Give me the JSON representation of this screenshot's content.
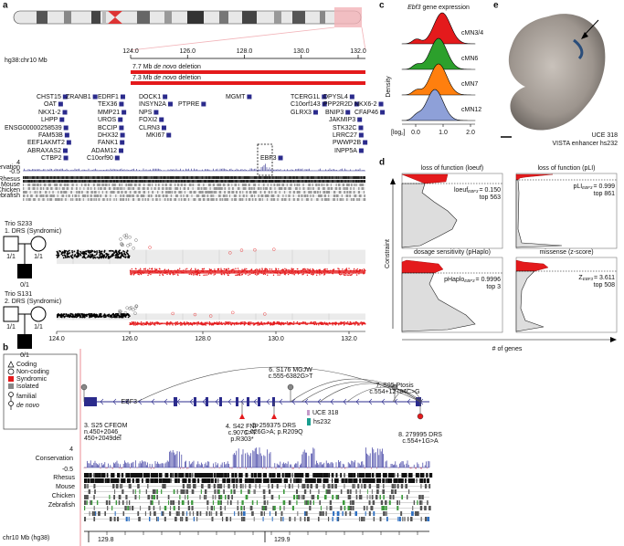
{
  "panel_labels": [
    "a",
    "b",
    "c",
    "d",
    "e"
  ],
  "panel_a": {
    "axis_label": "hg38:chr10 Mb",
    "axis_ticks": [
      "124.0",
      "126.0",
      "128.0",
      "130.0",
      "132.0"
    ],
    "deletions": [
      {
        "size": "7.7 Mb",
        "kind": "de novo",
        "rest": "deletion"
      },
      {
        "size": "7.3 Mb",
        "kind": "de novo",
        "rest": "deletion"
      }
    ],
    "genes": [
      "CHST15",
      "ZRANB1",
      "EDRF1",
      "DOCK1",
      "MGMT",
      "TCERG1L",
      "DPYSL4",
      "OAT",
      "TEX36",
      "INSYN2A",
      "PTPRE",
      "C10orf143",
      "PPP2R2D",
      "NKX6-2",
      "NKX1-2",
      "MMP21",
      "NPS",
      "GLRX3",
      "BNIP3",
      "CFAP46",
      "LHPP",
      "UROS",
      "FOXI2",
      "JAKMIP3",
      "ENSG00000258539",
      "BCCIP",
      "CLRN3",
      "STK32C",
      "FAM53B",
      "DHX32",
      "MKI67",
      "LRRC27",
      "EEF1AKMT2",
      "FANK1",
      "PWWP2B",
      "ABRAXAS2",
      "ADAM12",
      "INPP5A",
      "CTBP2",
      "C10orf90",
      "EBF3"
    ],
    "conservation": {
      "max": "4",
      "label": "Conservation",
      "min": "-0.5"
    },
    "species": [
      "Rhesus",
      "Mouse",
      "Chicken",
      "Zebrafish"
    ],
    "trios": [
      {
        "name": "Trio S233",
        "diagnosis": "1. DRS (Syndromic)",
        "parents": [
          "1/1",
          "1/1"
        ],
        "child": "0/1"
      },
      {
        "name": "Trio S131",
        "diagnosis": "2. DRS (Syndromic)",
        "parents": [
          "1/1",
          "1/1"
        ],
        "child": "0/1"
      }
    ],
    "plot_ticks": [
      "124.0",
      "126.0",
      "128.0",
      "130.0",
      "132.0"
    ]
  },
  "panel_b": {
    "legend": [
      "Coding",
      "Non-coding",
      "Syndromic",
      "Isolated",
      "familial",
      "de novo"
    ],
    "gene": "EBF3",
    "variants": [
      [
        "3. S25 CFEOM",
        "n.450+2046_",
        "450+2049del"
      ],
      [
        "4. S42 FNP",
        "c.907C>T",
        "p.R303*"
      ],
      [
        "5. 259375 DRS",
        "c.626G>A; p.R209Q"
      ],
      [
        "6. S176 MGJW",
        "c.555-6382G>T"
      ],
      [
        "7. S95 Ptosis",
        "c.554+12794C>G"
      ],
      [
        "8. 279995 DRS",
        "c.554+1G>A"
      ]
    ],
    "elements": [
      "UCE 318",
      "hs232"
    ],
    "conservation": {
      "max": "4",
      "label": "Conservation",
      "min": "-0.5"
    },
    "species": [
      "Rhesus",
      "Mouse",
      "Chicken",
      "Zebrafish"
    ],
    "axis_label": "chr10 Mb (hg38)",
    "axis_ticks": [
      "129.8",
      "129.9"
    ]
  },
  "panel_c": {
    "title_gene": "Ebf3",
    "title_rest": "gene expression",
    "cells": [
      "cMN3/4",
      "cMN6",
      "cMN7",
      "cMN12"
    ],
    "y_label": "Density",
    "x_ticks": [
      "0.0",
      "1.0",
      "2.0"
    ],
    "x_unit": [
      "[log",
      "2",
      "]"
    ]
  },
  "panel_d": {
    "y_label": "Constraint",
    "x_label": "# of genes",
    "panels": [
      {
        "title": "loss of function (loeuf)",
        "metric": "loeuf",
        "sub": "EBF3",
        "value": "= 0.150",
        "rank": "top 563"
      },
      {
        "title": "loss of function (pLI)",
        "metric": "pLI",
        "sub": "EBF3",
        "value": "= 0.999",
        "rank": "top 861"
      },
      {
        "title": "dosage sensitivity (pHaplo)",
        "metric": "pHaplo",
        "sub": "EBF3",
        "value": "= 0.9996",
        "rank": "top 3"
      },
      {
        "title": "missense (z-score)",
        "metric": "Z",
        "sub": "EBF3",
        "value": "= 3.611",
        "rank": "top 508"
      }
    ]
  },
  "panel_e": {
    "element": "UCE 318",
    "enhancer": "VISTA enhancer hs232"
  }
}
